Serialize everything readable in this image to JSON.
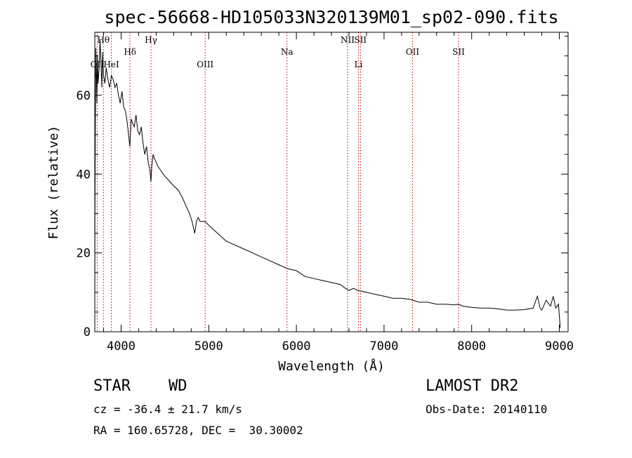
{
  "chart_data": {
    "type": "line",
    "title": "spec-56668-HD105033N320139M01_sp02-090.fits",
    "xlabel": "Wavelength (Å)",
    "ylabel": "Flux (relative)",
    "xlim": [
      3700,
      9100
    ],
    "ylim": [
      0,
      76
    ],
    "xticks": [
      4000,
      5000,
      6000,
      7000,
      8000,
      9000
    ],
    "yticks": [
      0,
      20,
      40,
      60
    ],
    "grid": false,
    "spectral_lines": [
      {
        "label": "OII",
        "wavelength": 3727,
        "row": "low"
      },
      {
        "label": "Hθ",
        "wavelength": 3798,
        "row": "top"
      },
      {
        "label": "HeI",
        "wavelength": 3889,
        "row": "low"
      },
      {
        "label": "Hδ",
        "wavelength": 4102,
        "row": "mid"
      },
      {
        "label": "Hγ",
        "wavelength": 4341,
        "row": "top"
      },
      {
        "label": "OIII",
        "wavelength": 4959,
        "row": "low"
      },
      {
        "label": "Na",
        "wavelength": 5893,
        "row": "mid"
      },
      {
        "label": "NII",
        "wavelength": 6584,
        "row": "top"
      },
      {
        "label": "Li",
        "wavelength": 6708,
        "row": "low"
      },
      {
        "label": "SII",
        "wavelength": 6731,
        "row": "top"
      },
      {
        "label": "OII",
        "wavelength": 7325,
        "row": "mid"
      },
      {
        "label": "SII",
        "wavelength": 7850,
        "row": "mid"
      }
    ],
    "series": [
      {
        "x": [
          3700,
          3702,
          3706,
          3712,
          3718,
          3724,
          3730,
          3738,
          3750,
          3760,
          3770,
          3780,
          3790,
          3800,
          3815,
          3830,
          3850,
          3870,
          3890,
          3910,
          3930,
          3950,
          3970,
          3990,
          4010,
          4030,
          4050,
          4070,
          4085,
          4100,
          4115,
          4130,
          4150,
          4170,
          4190,
          4210,
          4230,
          4250,
          4270,
          4290,
          4310,
          4330,
          4340,
          4350,
          4365,
          4380,
          4400,
          4420,
          4450,
          4480,
          4520,
          4560,
          4600,
          4650,
          4700,
          4740,
          4780,
          4810,
          4840,
          4860,
          4880,
          4900,
          4930,
          4960,
          5000,
          5050,
          5100,
          5150,
          5200,
          5300,
          5400,
          5500,
          5600,
          5700,
          5800,
          5900,
          6000,
          6100,
          6200,
          6300,
          6400,
          6500,
          6560,
          6600,
          6650,
          6700,
          6800,
          6900,
          7000,
          7100,
          7200,
          7300,
          7400,
          7500,
          7600,
          7700,
          7800,
          7850,
          7900,
          8000,
          8100,
          8200,
          8300,
          8400,
          8500,
          8600,
          8700,
          8750,
          8780,
          8800,
          8850,
          8900,
          8930,
          8960,
          8990,
          9010
        ],
        "y": [
          2,
          28,
          52,
          72,
          66,
          58,
          70,
          63,
          67,
          74,
          69,
          62,
          71,
          65,
          63,
          67,
          64,
          62,
          65,
          64,
          62,
          63,
          60,
          58,
          61,
          57,
          56,
          53,
          50,
          47,
          54,
          53,
          52,
          55,
          51,
          50,
          52,
          48,
          45,
          47,
          43,
          41,
          38,
          42,
          45,
          44,
          43,
          42,
          41,
          40,
          39,
          38,
          37,
          36,
          34,
          32,
          30,
          28,
          25,
          28,
          29,
          28,
          28,
          28,
          27,
          26,
          25,
          24,
          23,
          22,
          21,
          20,
          19,
          18,
          17,
          16,
          15.5,
          14,
          13.5,
          13,
          12.5,
          12,
          11,
          10.5,
          11,
          10.5,
          10,
          9.5,
          9,
          8.5,
          8.5,
          8.2,
          7.5,
          7.5,
          7,
          7,
          6.8,
          7,
          6.5,
          6.2,
          6,
          6,
          5.8,
          5.5,
          5.5,
          5.6,
          6,
          9,
          6,
          5.5,
          8,
          6.5,
          9,
          6,
          7,
          1
        ]
      }
    ]
  },
  "info": {
    "object_class": "STAR",
    "subclass": "WD",
    "survey": "LAMOST DR2",
    "redshift": "cz = -36.4 ± 21.7 km/s",
    "obs_date": "Obs-Date: 20140110",
    "coords": "RA = 160.65728, DEC =  30.30002"
  }
}
